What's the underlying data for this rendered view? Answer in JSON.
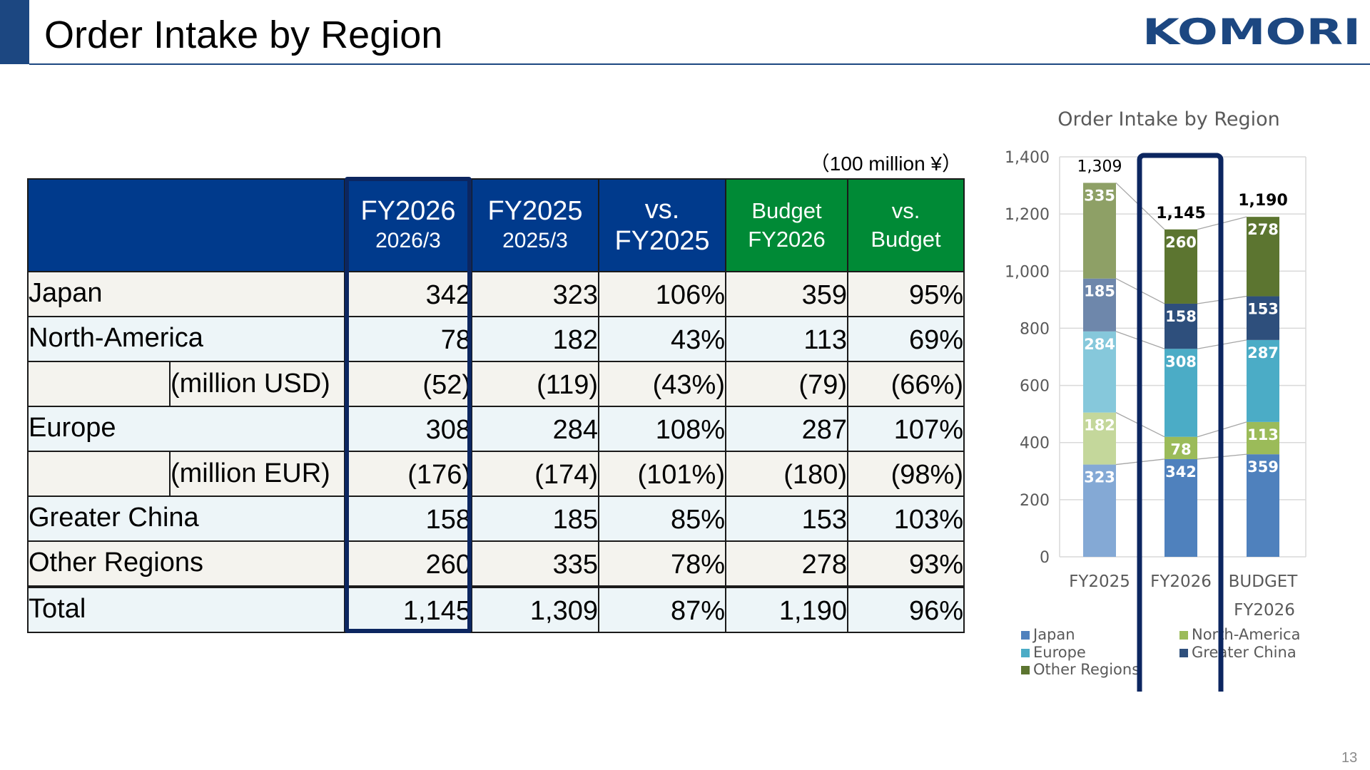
{
  "slide": {
    "title": "Order Intake by Region",
    "logo_text": "KOMORI",
    "page_number": "13",
    "unit_note": "（100 million ¥）",
    "colors": {
      "accent": "#1c4781",
      "header_blue": "#003a8c",
      "header_green": "#008a36",
      "highlight": "#0c2660"
    }
  },
  "table": {
    "headers": [
      {
        "main": "FY2026",
        "sub": "2026/3"
      },
      {
        "main": "FY2025",
        "sub": "2025/3"
      },
      {
        "main": "vs.",
        "sub": "FY2025"
      },
      {
        "main": "Budget",
        "sub": "FY2026"
      },
      {
        "main": "vs.",
        "sub": "Budget"
      }
    ],
    "rows": {
      "japan": {
        "label": "Japan",
        "values": [
          "342",
          "323",
          "106%",
          "359",
          "95%"
        ]
      },
      "north_america": {
        "label": "North-America",
        "values": [
          "78",
          "182",
          "43%",
          "113",
          "69%"
        ]
      },
      "usd": {
        "label": "(million USD)",
        "values": [
          "(52)",
          "(119)",
          "(43%)",
          "(79)",
          "(66%)"
        ]
      },
      "europe": {
        "label": "Europe",
        "values": [
          "308",
          "284",
          "108%",
          "287",
          "107%"
        ]
      },
      "eur": {
        "label": "(million EUR)",
        "values": [
          "(176)",
          "(174)",
          "(101%)",
          "(180)",
          "(98%)"
        ]
      },
      "greater_china": {
        "label": "Greater China",
        "values": [
          "158",
          "185",
          "85%",
          "153",
          "103%"
        ]
      },
      "other_regions": {
        "label": "Other Regions",
        "values": [
          "260",
          "335",
          "78%",
          "278",
          "93%"
        ]
      },
      "total": {
        "label": "Total",
        "values": [
          "1,145",
          "1,309",
          "87%",
          "1,190",
          "96%"
        ]
      }
    }
  },
  "chart_data": {
    "type": "bar",
    "stacked": true,
    "title": "Order Intake by Region",
    "categories": [
      "FY2025",
      "FY2026",
      "BUDGET FY2026"
    ],
    "ylim": [
      0,
      1400
    ],
    "yticks": [
      0,
      200,
      400,
      600,
      800,
      1000,
      1200,
      1400
    ],
    "ytick_labels": [
      "0",
      "200",
      "400",
      "600",
      "800",
      "1,000",
      "1,200",
      "1,400"
    ],
    "grid": true,
    "legend_position": "bottom",
    "highlighted_category": "FY2026",
    "series": [
      {
        "name": "Japan",
        "values": [
          323,
          342,
          359
        ],
        "labels": [
          "323",
          "342",
          "359"
        ],
        "colors": [
          "#84a9d5",
          "#4f81bd",
          "#4f81bd"
        ]
      },
      {
        "name": "North-America",
        "values": [
          182,
          78,
          113
        ],
        "labels": [
          "182",
          "78",
          "113"
        ],
        "colors": [
          "#c4d79b",
          "#9bbb59",
          "#9bbb59"
        ]
      },
      {
        "name": "Europe",
        "values": [
          284,
          308,
          287
        ],
        "labels": [
          "284",
          "308",
          "287"
        ],
        "colors": [
          "#86c8db",
          "#4bacc6",
          "#4bacc6"
        ]
      },
      {
        "name": "Greater China",
        "values": [
          185,
          158,
          153
        ],
        "labels": [
          "185",
          "158",
          "153"
        ],
        "colors": [
          "#6e87ab",
          "#2e4f7c",
          "#2e4f7c"
        ]
      },
      {
        "name": "Other Regions",
        "values": [
          335,
          260,
          278
        ],
        "labels": [
          "335",
          "260",
          "278"
        ],
        "colors": [
          "#8ea066",
          "#5c7530",
          "#5c7530"
        ]
      }
    ],
    "totals": [
      1309,
      1145,
      1190
    ],
    "total_labels": [
      "1,309",
      "1,145",
      "1,190"
    ],
    "legend_colors": [
      "#4f81bd",
      "#9bbb59",
      "#4bacc6",
      "#2e4f7c",
      "#5c7530"
    ]
  }
}
